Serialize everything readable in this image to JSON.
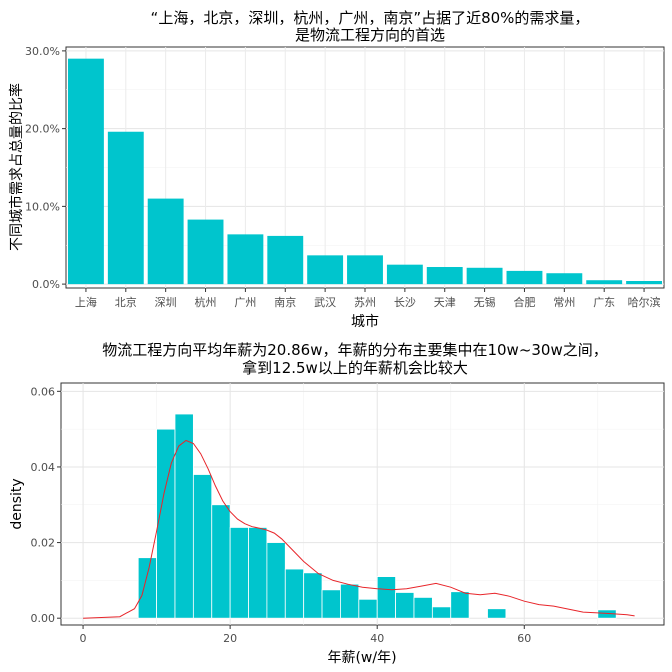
{
  "chart_data": [
    {
      "type": "bar",
      "title_line1": "“上海，北京，深圳，杭州，广州，南京”占据了近80%的需求量，",
      "title_line2": "是物流工程方向的首选",
      "xlabel": "城市",
      "ylabel": "不同城市需求占总量的比率",
      "categories": [
        "上海",
        "北京",
        "深圳",
        "杭州",
        "广州",
        "南京",
        "武汉",
        "苏州",
        "长沙",
        "天津",
        "无锡",
        "合肥",
        "常州",
        "广东",
        "哈尔滨"
      ],
      "values": [
        29.0,
        19.6,
        11.0,
        8.3,
        6.4,
        6.2,
        3.7,
        3.7,
        2.5,
        2.2,
        2.1,
        1.7,
        1.4,
        0.5,
        0.4
      ],
      "ylim": [
        -0.5,
        30.5
      ],
      "yticks": [
        0,
        10,
        20,
        30
      ],
      "ytick_labels": [
        "0.0%",
        "10.0%",
        "20.0%",
        "30.0%"
      ],
      "bar_color": "#00c5cd",
      "grid": true
    },
    {
      "type": "histogram",
      "title_line1": "物流工程方向平均年薪为20.86w，年薪的分布主要集中在10w~30w之间，",
      "title_line2": "拿到12.5w以上的年薪机会比较大",
      "xlabel": "年薪(w/年)",
      "ylabel": "density",
      "bin_width": 2.5,
      "bins_start": [
        7.5,
        10,
        12.5,
        15,
        17.5,
        20,
        22.5,
        25,
        27.5,
        30,
        32.5,
        35,
        37.5,
        40,
        42.5,
        45,
        47.5,
        50,
        52.5,
        55,
        57.5,
        60,
        62.5,
        65,
        67.5,
        70
      ],
      "density": [
        0.016,
        0.05,
        0.054,
        0.038,
        0.03,
        0.024,
        0.024,
        0.02,
        0.013,
        0.012,
        0.0075,
        0.009,
        0.005,
        0.011,
        0.0068,
        0.0055,
        0.003,
        0.007,
        0.0,
        0.0025,
        0.0,
        0.0,
        0.0,
        0.0,
        0.0,
        0.0022
      ],
      "kde_x": [
        0,
        5,
        7,
        8,
        9,
        10,
        11,
        12,
        13,
        14,
        15,
        16,
        17,
        18,
        19,
        20,
        21,
        22,
        23,
        24,
        25,
        26,
        27,
        28,
        29,
        30,
        32,
        34,
        36,
        38,
        40,
        42,
        44,
        46,
        48,
        50,
        52,
        54,
        56,
        58,
        60,
        62,
        64,
        66,
        68,
        70,
        72,
        74,
        75
      ],
      "kde_y": [
        0.0,
        0.0004,
        0.0025,
        0.006,
        0.0135,
        0.023,
        0.033,
        0.041,
        0.0455,
        0.047,
        0.0462,
        0.0435,
        0.0395,
        0.035,
        0.031,
        0.0282,
        0.0262,
        0.025,
        0.0242,
        0.0238,
        0.0233,
        0.0225,
        0.021,
        0.019,
        0.017,
        0.015,
        0.0118,
        0.01,
        0.009,
        0.0082,
        0.0078,
        0.0075,
        0.0078,
        0.0085,
        0.0092,
        0.0082,
        0.0066,
        0.0062,
        0.0066,
        0.0058,
        0.0045,
        0.0036,
        0.0032,
        0.0024,
        0.0016,
        0.0014,
        0.0012,
        0.0009,
        0.0006
      ],
      "xlim": [
        -3,
        79
      ],
      "ylim": [
        -0.0018,
        0.0622
      ],
      "xticks": [
        0,
        20,
        40,
        60
      ],
      "xtick_labels": [
        "0",
        "20",
        "40",
        "60"
      ],
      "yticks": [
        0,
        0.02,
        0.04,
        0.06
      ],
      "ytick_labels": [
        "0.00",
        "0.02",
        "0.04",
        "0.06"
      ],
      "bar_color": "#00c5cd",
      "line_color": "#e8252a",
      "grid": true
    }
  ]
}
